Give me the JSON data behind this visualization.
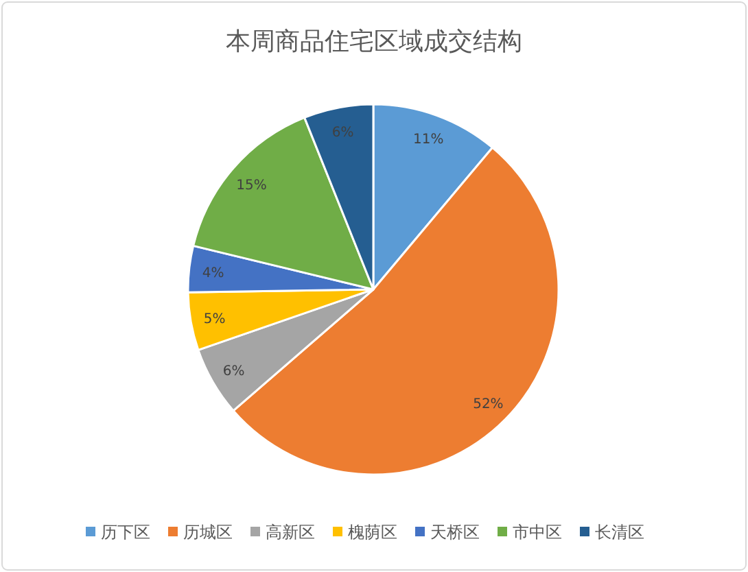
{
  "chart_data": {
    "type": "pie",
    "title": "本周商品住宅区域成交结构",
    "categories": [
      "历下区",
      "历城区",
      "高新区",
      "槐荫区",
      "天桥区",
      "市中区",
      "长清区"
    ],
    "values": [
      11,
      52,
      6,
      5,
      4,
      15,
      6
    ],
    "colors": [
      "#5b9bd5",
      "#ed7d31",
      "#a5a5a5",
      "#ffc000",
      "#4472c4",
      "#70ad47",
      "#255e91"
    ],
    "value_labels": [
      "11%",
      "52%",
      "6%",
      "5%",
      "4%",
      "15%",
      "6%"
    ],
    "legend": "bottom"
  }
}
